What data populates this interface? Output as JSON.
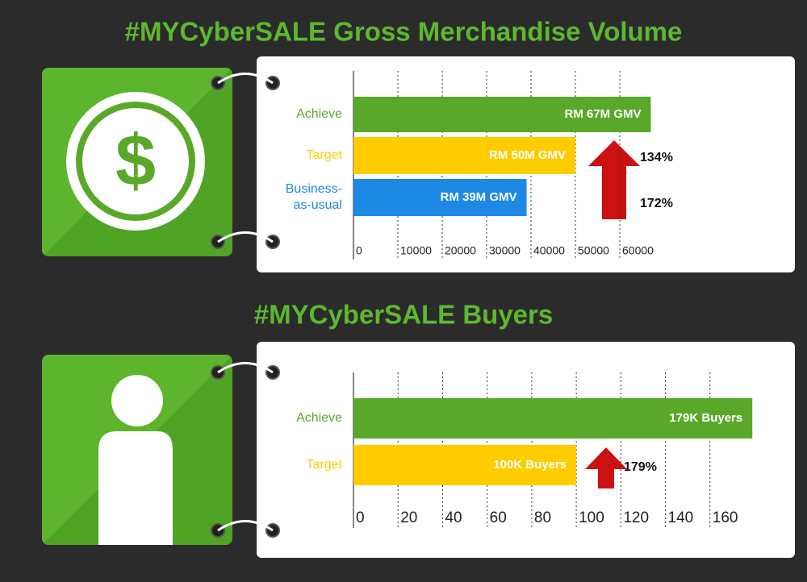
{
  "chart_data": [
    {
      "type": "hbar",
      "title": "#MYCyberSALE Gross Merchandise Volume",
      "categories": [
        "Achieve",
        "Target",
        "Business-as-usual"
      ],
      "values": [
        67000,
        50000,
        39000
      ],
      "value_labels": [
        "RM 67M GMV",
        "RM 50M GMV",
        "RM 39M GMV"
      ],
      "colors": [
        "#5aa82a",
        "#ffcc00",
        "#1e88e5"
      ],
      "xlim": [
        0,
        70000
      ],
      "xticks": [
        0,
        10000,
        20000,
        30000,
        40000,
        50000,
        60000
      ],
      "grid": true,
      "annotations": [
        "134%",
        "172%"
      ]
    },
    {
      "type": "hbar",
      "title": "#MYCyberSALE Buyers",
      "categories": [
        "Achieve",
        "Target"
      ],
      "values": [
        179,
        100
      ],
      "value_labels": [
        "179K Buyers",
        "100K Buyers"
      ],
      "colors": [
        "#5aa82a",
        "#ffcc00"
      ],
      "xlim": [
        0,
        180
      ],
      "xticks": [
        0,
        20,
        40,
        60,
        80,
        100,
        120,
        140,
        160
      ],
      "grid": true,
      "annotations": [
        "179%"
      ]
    }
  ]
}
